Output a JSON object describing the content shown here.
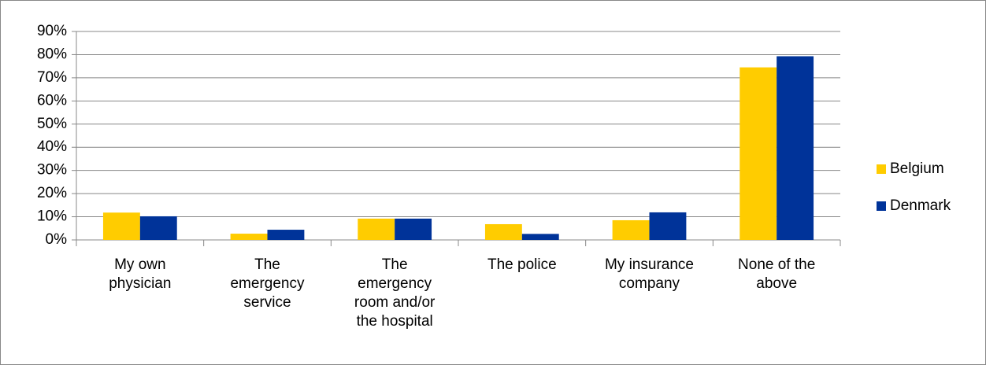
{
  "chart_data": {
    "type": "bar",
    "categories": [
      "My own\nphysician",
      "The\nemergency\nservice",
      "The\nemergency\nroom and/or\nthe hospital",
      "The police",
      "My insurance\ncompany",
      "None of the\nabove"
    ],
    "series": [
      {
        "name": "Belgium",
        "color": "#ffcc00",
        "values": [
          11.8,
          2.7,
          9.2,
          6.8,
          8.5,
          74.5
        ]
      },
      {
        "name": "Denmark",
        "color": "#003399",
        "values": [
          10.2,
          4.4,
          9.2,
          2.6,
          11.9,
          79.3
        ]
      }
    ],
    "ylim": [
      0,
      90
    ],
    "yticks": [
      {
        "value": 0,
        "label": "0%"
      },
      {
        "value": 10,
        "label": "10%"
      },
      {
        "value": 20,
        "label": "20%"
      },
      {
        "value": 30,
        "label": "30%"
      },
      {
        "value": 40,
        "label": "40%"
      },
      {
        "value": 50,
        "label": "50%"
      },
      {
        "value": 60,
        "label": "60%"
      },
      {
        "value": 70,
        "label": "70%"
      },
      {
        "value": 80,
        "label": "80%"
      },
      {
        "value": 90,
        "label": "90%"
      }
    ],
    "grid": true,
    "legend": "right"
  }
}
